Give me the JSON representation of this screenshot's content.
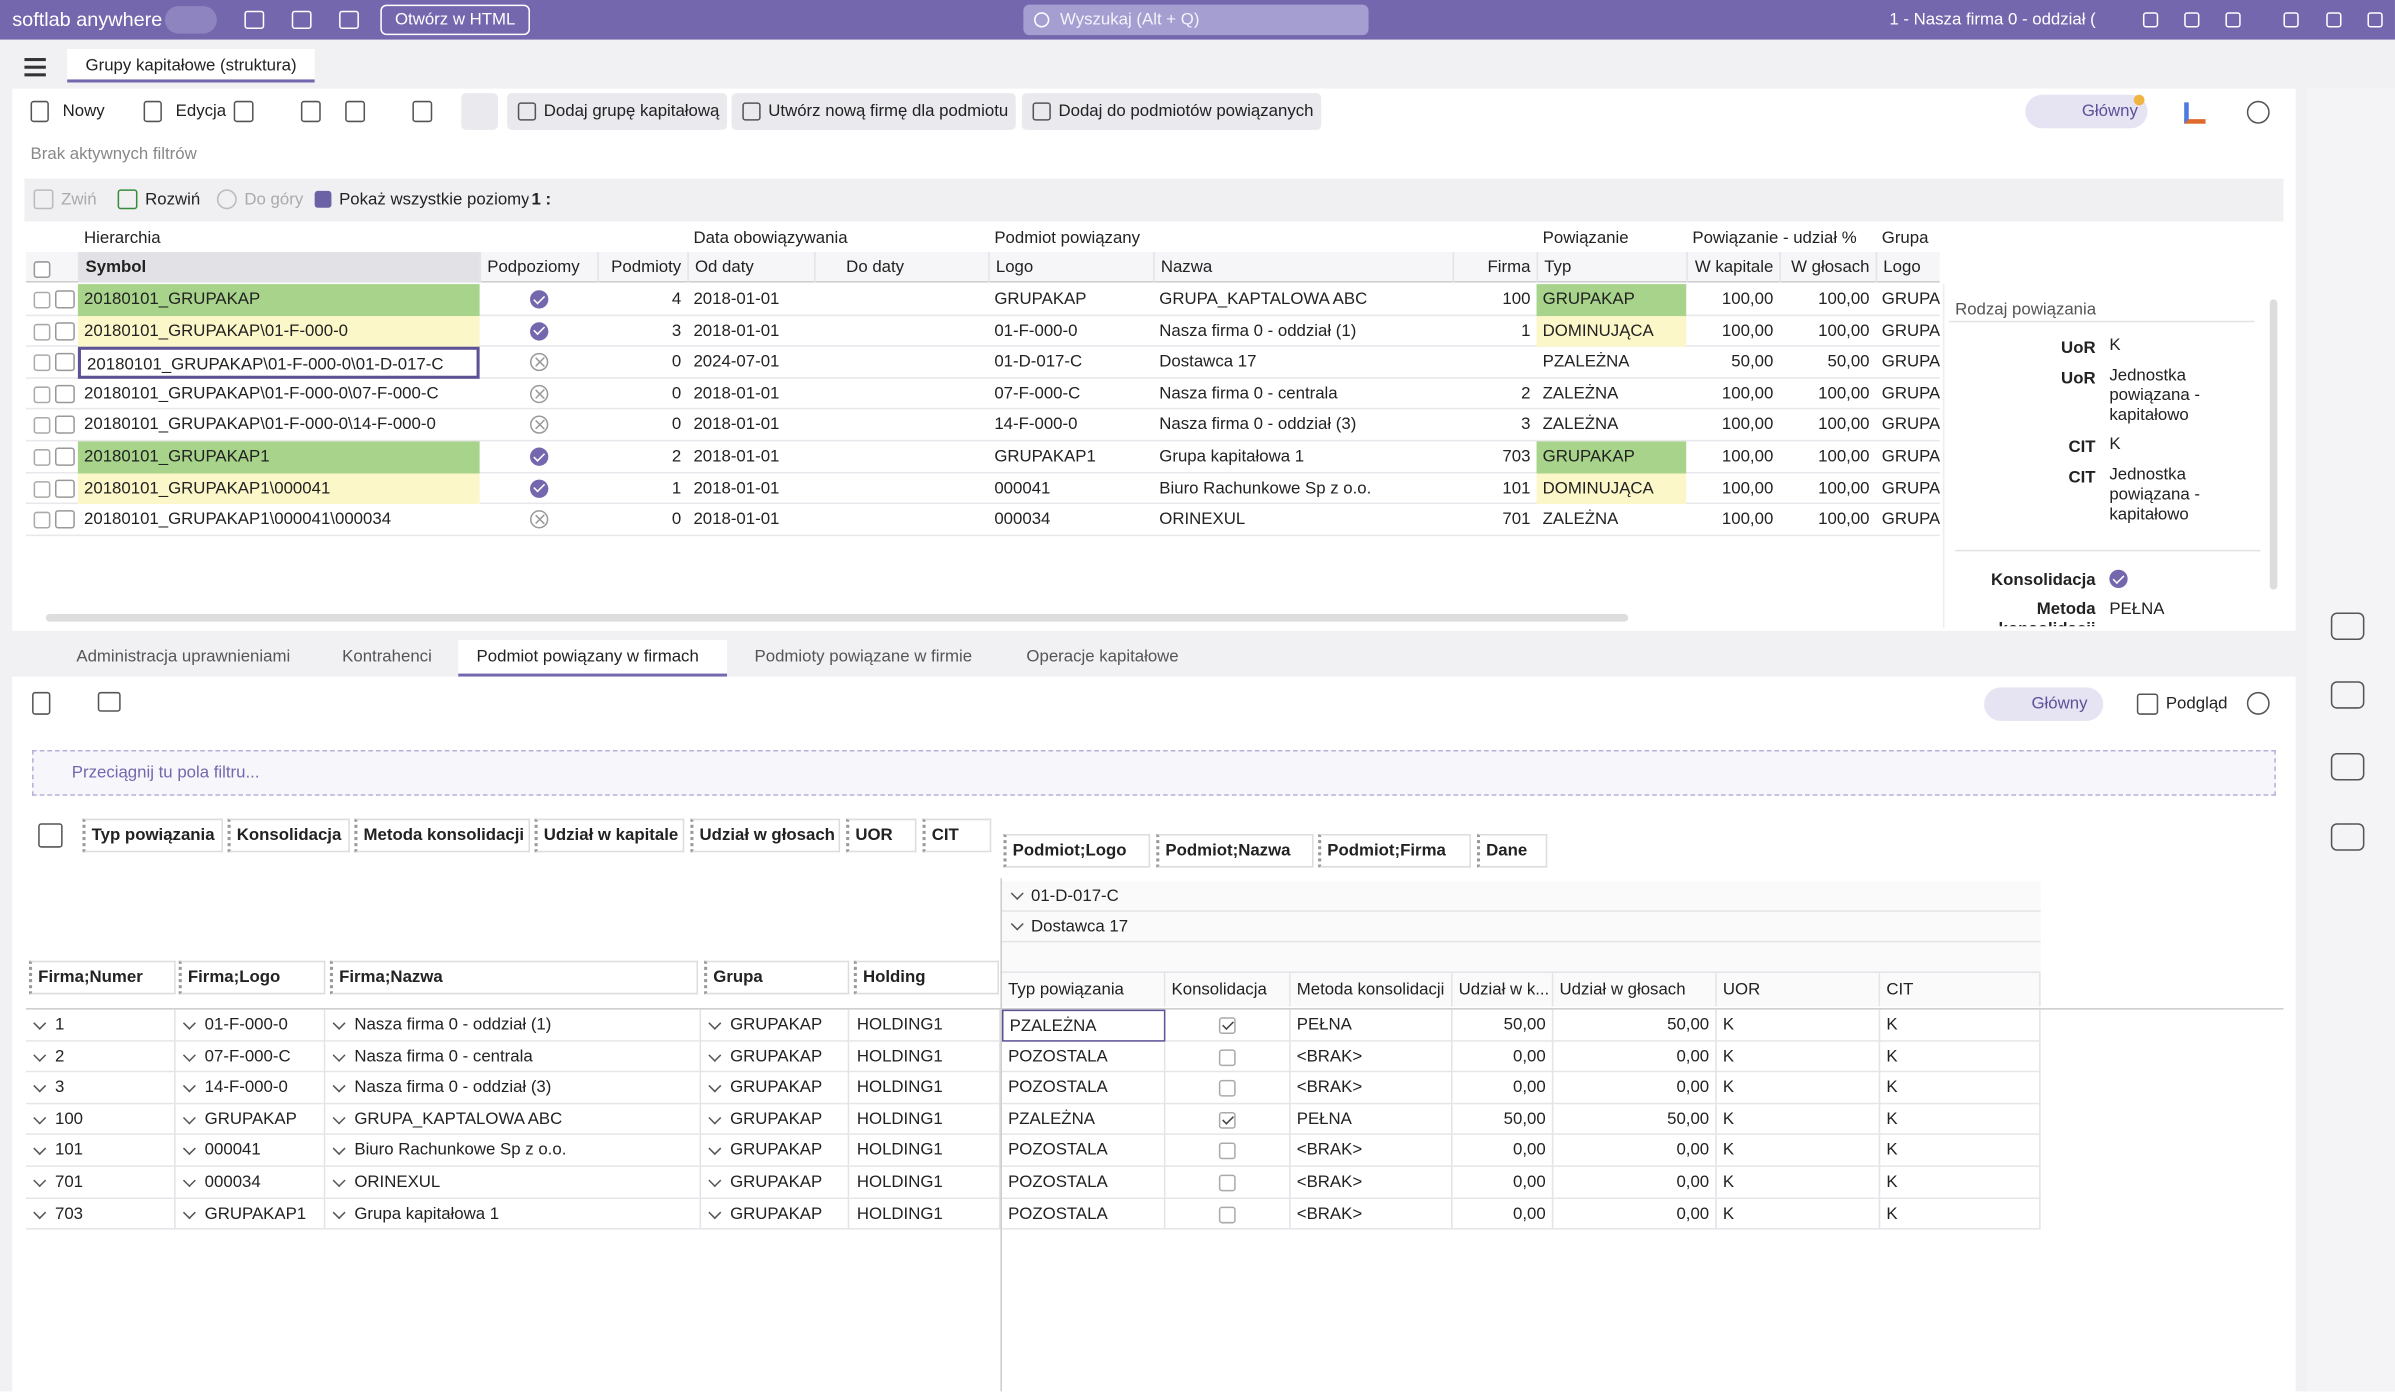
{
  "app": {
    "brand": "softlab anywhere",
    "open_html": "Otwórz w HTML",
    "search": "Wyszukaj (Alt + Q)",
    "company": "1 - Nasza firma 0 - oddział ("
  },
  "tab": "Grupy kapitałowe (struktura)",
  "toolbar": {
    "new": "Nowy",
    "edit": "Edycja",
    "add_group": "Dodaj grupę kapitałową",
    "create_firm": "Utwórz nową firmę dla podmiotu",
    "add_related": "Dodaj do podmiotów powiązanych",
    "main": "Główny"
  },
  "filter_status": "Brak aktywnych filtrów",
  "tree_toolbar": {
    "collapse": "Zwiń",
    "expand": "Rozwiń",
    "up": "Do góry",
    "show_all": "Pokaż wszystkie poziomy",
    "level": "1 :"
  },
  "top_grid": {
    "groups": [
      "Hierarchia",
      "Data obowiązywania",
      "Podmiot powiązany",
      "Powiązanie",
      "Powiązanie - udział %",
      "Grupa"
    ],
    "columns": [
      "Symbol",
      "Podpoziomy",
      "Podmioty",
      "Od daty",
      "Do daty",
      "Logo",
      "Nazwa",
      "Firma",
      "Typ",
      "W kapitale",
      "W głosach",
      "Logo"
    ],
    "rows": [
      {
        "symbol": "20180101_GRUPAKAP",
        "sublevels": true,
        "entities": 4,
        "from": "2018-01-01",
        "logo": "GRUPAKAP",
        "name": "GRUPA_KAPTALOWA ABC",
        "firm": 100,
        "type": "GRUPAKAP",
        "capital": "100,00",
        "votes": "100,00",
        "group": "GRUPA",
        "highlight": "green"
      },
      {
        "symbol": "20180101_GRUPAKAP\\01-F-000-0",
        "sublevels": true,
        "entities": 3,
        "from": "2018-01-01",
        "logo": "01-F-000-0",
        "name": "Nasza firma 0 - oddział (1)",
        "firm": 1,
        "type": "DOMINUJĄCA",
        "capital": "100,00",
        "votes": "100,00",
        "group": "GRUPA",
        "highlight": "yellow"
      },
      {
        "symbol": "20180101_GRUPAKAP\\01-F-000-0\\01-D-017-C",
        "sublevels": false,
        "entities": 0,
        "from": "2024-07-01",
        "logo": "01-D-017-C",
        "name": "Dostawca 17",
        "firm": null,
        "type": "PZALEŻNA",
        "capital": "50,00",
        "votes": "50,00",
        "group": "GRUPA",
        "highlight": "selected"
      },
      {
        "symbol": "20180101_GRUPAKAP\\01-F-000-0\\07-F-000-C",
        "sublevels": false,
        "entities": 0,
        "from": "2018-01-01",
        "logo": "07-F-000-C",
        "name": "Nasza firma 0 - centrala",
        "firm": 2,
        "type": "ZALEŻNA",
        "capital": "100,00",
        "votes": "100,00",
        "group": "GRUPA",
        "highlight": null
      },
      {
        "symbol": "20180101_GRUPAKAP\\01-F-000-0\\14-F-000-0",
        "sublevels": false,
        "entities": 0,
        "from": "2018-01-01",
        "logo": "14-F-000-0",
        "name": "Nasza firma 0 - oddział (3)",
        "firm": 3,
        "type": "ZALEŻNA",
        "capital": "100,00",
        "votes": "100,00",
        "group": "GRUPA",
        "highlight": null
      },
      {
        "symbol": "20180101_GRUPAKAP1",
        "sublevels": true,
        "entities": 2,
        "from": "2018-01-01",
        "logo": "GRUPAKAP1",
        "name": "Grupa kapitałowa 1",
        "firm": 703,
        "type": "GRUPAKAP",
        "capital": "100,00",
        "votes": "100,00",
        "group": "GRUPA",
        "highlight": "green"
      },
      {
        "symbol": "20180101_GRUPAKAP1\\000041",
        "sublevels": true,
        "entities": 1,
        "from": "2018-01-01",
        "logo": "000041",
        "name": "Biuro Rachunkowe Sp z o.o.",
        "firm": 101,
        "type": "DOMINUJĄCA",
        "capital": "100,00",
        "votes": "100,00",
        "group": "GRUPA",
        "highlight": "yellow"
      },
      {
        "symbol": "20180101_GRUPAKAP1\\000041\\000034",
        "sublevels": false,
        "entities": 0,
        "from": "2018-01-01",
        "logo": "000034",
        "name": "ORINEXUL",
        "firm": 701,
        "type": "ZALEŻNA",
        "capital": "100,00",
        "votes": "100,00",
        "group": "GRUPA",
        "highlight": null
      }
    ]
  },
  "details": {
    "title": "Rodzaj powiązania",
    "items": [
      [
        "UoR",
        "K"
      ],
      [
        "UoR",
        "Jednostka powiązana - kapitałowo"
      ],
      [
        "CIT",
        "K"
      ],
      [
        "CIT",
        "Jednostka powiązana - kapitałowo"
      ]
    ],
    "consolidation": "Konsolidacja",
    "method_label": "Metoda konsolidacji",
    "method": "PEŁNA"
  },
  "bottom_tabs": {
    "items": [
      "Administracja uprawnieniami",
      "Kontrahenci",
      "Podmiot powiązany w firmach",
      "Podmioty powiązane w firmie",
      "Operacje kapitałowe"
    ],
    "active": 2
  },
  "bottom_toolbar": {
    "main": "Główny",
    "preview": "Podgląd"
  },
  "filter_drop": "Przeciągnij tu pola filtru...",
  "pivot": {
    "fields": [
      "Typ powiązania",
      "Konsolidacja",
      "Metoda konsolidacji",
      "Udział w kapitale",
      "Udział w głosach",
      "UOR",
      "CIT"
    ],
    "column_fields": [
      "Podmiot;Logo",
      "Podmiot;Nazwa",
      "Podmiot;Firma",
      "Dane"
    ],
    "row_fields": [
      "Firma;Numer",
      "Firma;Logo",
      "Firma;Nazwa",
      "Grupa",
      "Holding"
    ],
    "column_headers": [
      "01-D-017-C",
      "Dostawca 17"
    ],
    "data_headers": [
      "Typ powiązania",
      "Konsolidacja",
      "Metoda konsolidacji",
      "Udział w k...",
      "Udział w głosach",
      "UOR",
      "CIT"
    ],
    "rows": [
      {
        "number": 1,
        "logo": "01-F-000-0",
        "name": "Nasza firma 0 - oddział (1)",
        "group": "GRUPAKAP",
        "holding": "HOLDING1",
        "type": "PZALEŻNA",
        "consolidation": true,
        "method": "PEŁNA",
        "capital": "50,00",
        "votes": "50,00",
        "uor": "K",
        "cit": "K"
      },
      {
        "number": 2,
        "logo": "07-F-000-C",
        "name": "Nasza firma 0 - centrala",
        "group": "GRUPAKAP",
        "holding": "HOLDING1",
        "type": "POZOSTALA",
        "consolidation": false,
        "method": "<BRAK>",
        "capital": "0,00",
        "votes": "0,00",
        "uor": "K",
        "cit": "K"
      },
      {
        "number": 3,
        "logo": "14-F-000-0",
        "name": "Nasza firma 0 - oddział (3)",
        "group": "GRUPAKAP",
        "holding": "HOLDING1",
        "type": "POZOSTALA",
        "consolidation": false,
        "method": "<BRAK>",
        "capital": "0,00",
        "votes": "0,00",
        "uor": "K",
        "cit": "K"
      },
      {
        "number": 100,
        "logo": "GRUPAKAP",
        "name": "GRUPA_KAPTALOWA ABC",
        "group": "GRUPAKAP",
        "holding": "HOLDING1",
        "type": "PZALEŻNA",
        "consolidation": true,
        "method": "PEŁNA",
        "capital": "50,00",
        "votes": "50,00",
        "uor": "K",
        "cit": "K"
      },
      {
        "number": 101,
        "logo": "000041",
        "name": "Biuro Rachunkowe Sp z o.o.",
        "group": "GRUPAKAP",
        "holding": "HOLDING1",
        "type": "POZOSTALA",
        "consolidation": false,
        "method": "<BRAK>",
        "capital": "0,00",
        "votes": "0,00",
        "uor": "K",
        "cit": "K"
      },
      {
        "number": 701,
        "logo": "000034",
        "name": "ORINEXUL",
        "group": "GRUPAKAP",
        "holding": "HOLDING1",
        "type": "POZOSTALA",
        "consolidation": false,
        "method": "<BRAK>",
        "capital": "0,00",
        "votes": "0,00",
        "uor": "K",
        "cit": "K"
      },
      {
        "number": 703,
        "logo": "GRUPAKAP1",
        "name": "Grupa kapitałowa 1",
        "group": "GRUPAKAP",
        "holding": "HOLDING1",
        "type": "POZOSTALA",
        "consolidation": false,
        "method": "<BRAK>",
        "capital": "0,00",
        "votes": "0,00",
        "uor": "K",
        "cit": "K"
      }
    ]
  }
}
